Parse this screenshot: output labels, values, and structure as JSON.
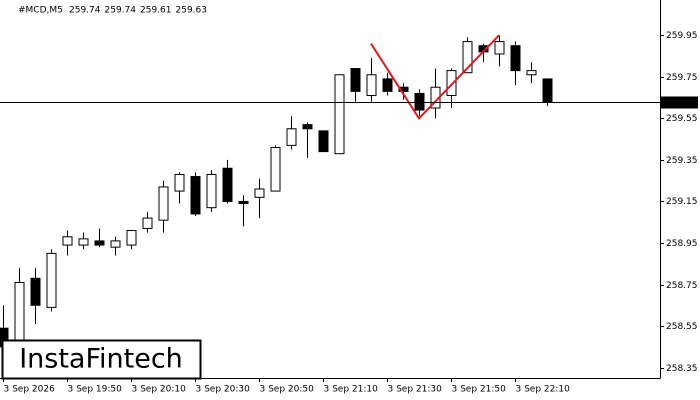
{
  "chart_data": {
    "type": "candlestick",
    "title": "#MCD,M5",
    "header_values": [
      259.74,
      259.74,
      259.61,
      259.63
    ],
    "categories": [
      "3 Sep 2026",
      null,
      null,
      null,
      "3 Sep 19:50",
      null,
      null,
      null,
      "3 Sep 20:10",
      null,
      null,
      null,
      "3 Sep 20:30",
      null,
      null,
      null,
      "3 Sep 20:50",
      null,
      null,
      null,
      "3 Sep 21:10",
      null,
      null,
      null,
      "3 Sep 21:30",
      null,
      null,
      null,
      "3 Sep 21:50",
      null,
      null,
      null,
      "3 Sep 22:10",
      null,
      null
    ],
    "open": [
      258.54,
      258.48,
      258.78,
      258.64,
      258.94,
      258.94,
      258.96,
      258.93,
      258.94,
      259.02,
      259.06,
      259.2,
      259.27,
      259.12,
      259.31,
      259.15,
      259.17,
      259.2,
      259.42,
      259.52,
      259.49,
      259.38,
      259.79,
      259.66,
      259.74,
      259.7,
      259.67,
      259.6,
      259.66,
      259.77,
      259.9,
      259.86,
      259.9,
      259.76,
      259.74
    ],
    "high": [
      258.65,
      258.83,
      258.83,
      258.92,
      259.01,
      259.0,
      259.02,
      258.98,
      259.01,
      259.1,
      259.25,
      259.29,
      259.29,
      259.3,
      259.35,
      259.18,
      259.26,
      259.42,
      259.56,
      259.53,
      259.49,
      259.76,
      259.79,
      259.84,
      259.77,
      259.72,
      259.69,
      259.79,
      259.79,
      259.94,
      259.91,
      259.95,
      259.92,
      259.82,
      259.74
    ],
    "low": [
      258.4,
      258.4,
      258.56,
      258.62,
      258.89,
      258.92,
      258.93,
      258.89,
      258.92,
      259.0,
      259.0,
      259.14,
      259.08,
      259.1,
      259.14,
      259.03,
      259.07,
      259.2,
      259.4,
      259.36,
      259.39,
      259.38,
      259.63,
      259.63,
      259.66,
      259.64,
      259.56,
      259.55,
      259.6,
      259.77,
      259.82,
      259.8,
      259.71,
      259.72,
      259.61
    ],
    "close": [
      258.45,
      258.76,
      258.65,
      258.9,
      258.98,
      258.97,
      258.94,
      258.96,
      259.01,
      259.07,
      259.22,
      259.28,
      259.09,
      259.28,
      259.15,
      259.14,
      259.21,
      259.41,
      259.5,
      259.5,
      259.39,
      259.76,
      259.68,
      259.76,
      259.68,
      259.68,
      259.59,
      259.7,
      259.78,
      259.92,
      259.87,
      259.92,
      259.78,
      259.78,
      259.63
    ],
    "up_color": "#ffffff",
    "down_color": "#000000",
    "pattern": {
      "color": "#e8141b",
      "x": [
        23,
        26,
        31
      ],
      "values": [
        259.91,
        259.55,
        259.95
      ]
    },
    "current_price": 259.63,
    "ylim": [
      258.3,
      260.12
    ],
    "yticks": [
      259.95,
      259.75,
      259.55,
      259.35,
      259.15,
      258.95,
      258.75,
      258.55,
      258.35
    ],
    "watermark": "InstaFintech"
  }
}
